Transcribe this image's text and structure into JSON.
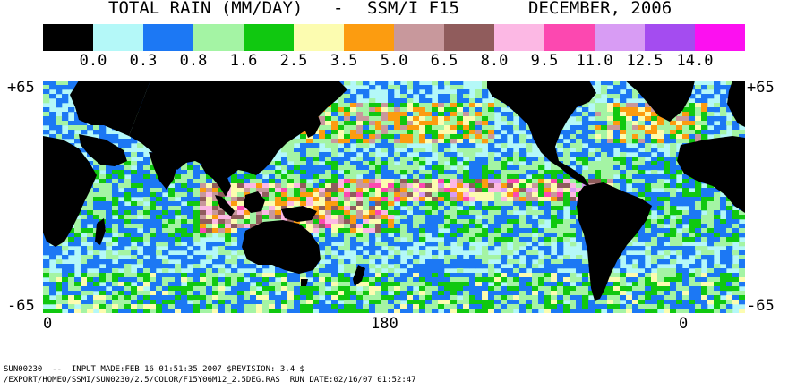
{
  "title": {
    "left": "TOTAL RAIN (MM/DAY)",
    "dash": "-",
    "instrument": "SSM/I F15",
    "date": "DECEMBER, 2006"
  },
  "legend": {
    "colors": [
      "#000000",
      "#b4f8f8",
      "#1c78f4",
      "#a4f4a4",
      "#10c810",
      "#fcfcb0",
      "#fc9c10",
      "#c8989c",
      "#905c5c",
      "#fcb8e4",
      "#fc48b0",
      "#d89cf4",
      "#a44cf0",
      "#fc10f0"
    ],
    "thresholds": [
      "0.0",
      "0.3",
      "0.8",
      "1.6",
      "2.5",
      "3.5",
      "5.0",
      "6.5",
      "8.0",
      "9.5",
      "11.0",
      "12.5",
      "14.0"
    ]
  },
  "axes": {
    "lat_top_left": "+65",
    "lat_top_right": "+65",
    "lat_bottom_left": "-65",
    "lat_bottom_right": "-65",
    "lon_left": "0",
    "lon_center": "180",
    "lon_right": "0"
  },
  "map": {
    "land_color": "#000000",
    "ocean_base_color": "#b4f8f8",
    "grid_resolution": "2.5 deg"
  },
  "footer": {
    "line1": "SUN00230  --  INPUT MADE:FEB 16 01:51:35 2007 $REVISION: 3.4 $",
    "line2": "/EXPORT/HOMEO/SSMI/SUN0230/2.5/COLOR/F15Y06M12_2.5DEG.RAS  RUN DATE:02/16/07 01:52:47"
  }
}
